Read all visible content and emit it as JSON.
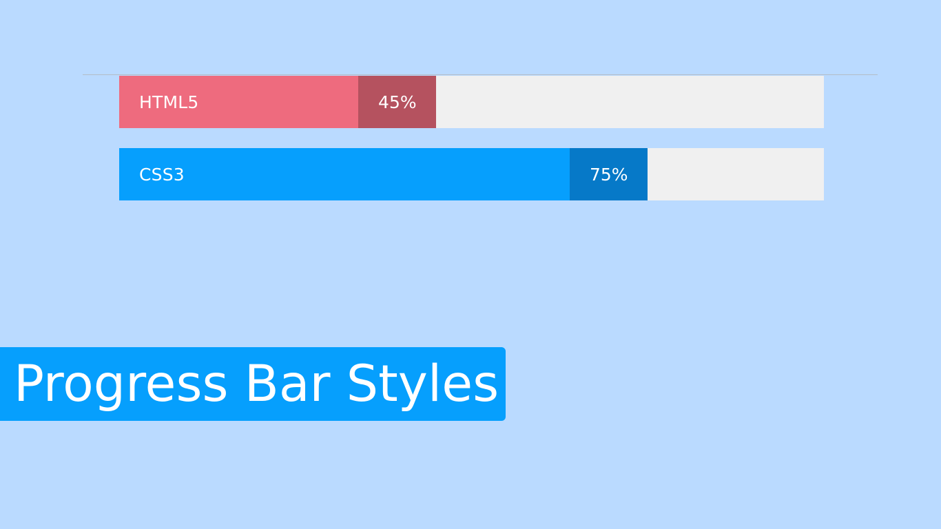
{
  "bars": [
    {
      "label": "HTML5",
      "percent_text": "45%",
      "progress_fraction": 0.45,
      "fill_color": "#ee6b7e",
      "pct_box_color": "#b5525f"
    },
    {
      "label": "CSS3",
      "percent_text": "75%",
      "progress_fraction": 0.75,
      "fill_color": "#069ffd",
      "pct_box_color": "#0679c8"
    }
  ],
  "track_color": "#f0f0f0",
  "background_color": "#badaff",
  "title": "Progress Bar Styles",
  "title_badge_color": "#069ffd"
}
